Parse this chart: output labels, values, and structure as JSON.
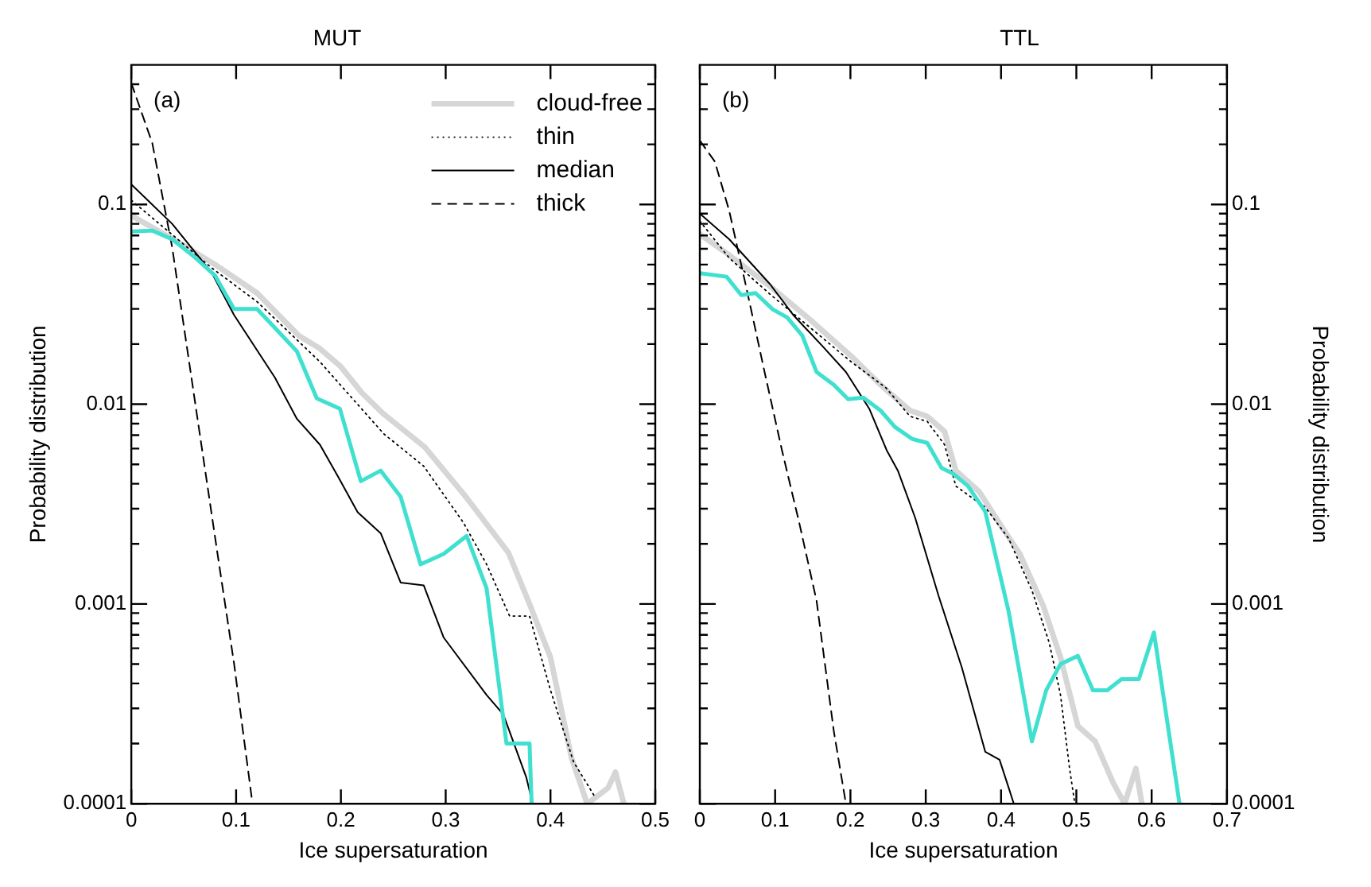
{
  "chart_data": [
    {
      "type": "line",
      "title": "MUT",
      "xlabel": "Ice supersaturation",
      "ylabel": "Probability distribution",
      "log": "y",
      "legend": "top right",
      "marker": "none",
      "grid": false,
      "annotations": [
        "(a)"
      ],
      "xlim": [
        0,
        0.5
      ],
      "xticks": [
        0,
        0.1,
        0.2,
        0.3,
        0.4,
        0.5
      ],
      "ylim": [
        0.0001,
        0.5
      ],
      "yticks": [
        0.0001,
        {
          "value": 0.0002,
          "label": null
        },
        {
          "value": 0.0003,
          "label": null
        },
        {
          "value": 0.0004,
          "label": null
        },
        {
          "value": 0.0005,
          "label": null
        },
        {
          "value": 0.0006,
          "label": null
        },
        {
          "value": 0.0007,
          "label": null
        },
        {
          "value": 0.0008,
          "label": null
        },
        {
          "value": 0.0009,
          "label": null
        },
        0.001,
        {
          "value": 0.002,
          "label": null
        },
        {
          "value": 0.003,
          "label": null
        },
        {
          "value": 0.004,
          "label": null
        },
        {
          "value": 0.005,
          "label": null
        },
        {
          "value": 0.006,
          "label": null
        },
        {
          "value": 0.007,
          "label": null
        },
        {
          "value": 0.008,
          "label": null
        },
        {
          "value": 0.009,
          "label": null
        },
        0.01,
        {
          "value": 0.02,
          "label": null
        },
        {
          "value": 0.03,
          "label": null
        },
        {
          "value": 0.04,
          "label": null
        },
        {
          "value": 0.05,
          "label": null
        },
        {
          "value": 0.06,
          "label": null
        },
        {
          "value": 0.07,
          "label": null
        },
        {
          "value": 0.08,
          "label": null
        },
        {
          "value": 0.09,
          "label": null
        },
        0.1,
        {
          "value": 0.2,
          "label": null
        },
        {
          "value": 0.3,
          "label": null
        },
        {
          "value": 0.4,
          "label": null
        }
      ],
      "series": [
        {
          "name": "cloud-free",
          "color": "#d6d6d6",
          "line_style": "solid",
          "x": [
            0,
            0.04,
            0.08,
            0.12,
            0.16,
            0.18,
            0.2,
            0.22,
            0.24,
            0.28,
            0.32,
            0.36,
            0.38,
            0.4,
            0.42,
            0.435,
            0.455,
            0.462,
            0.47
          ],
          "values": [
            0.088,
            0.067,
            0.05,
            0.036,
            0.022,
            0.019,
            0.0154,
            0.0114,
            0.009,
            0.0061,
            0.0034,
            0.0018,
            0.001,
            0.00054,
            0.00017,
            0.0001,
            0.00012,
            0.000144,
            0.0001
          ]
        },
        {
          "name": "thin",
          "color": "#000000",
          "line_style": "dotted",
          "x": [
            0,
            0.077,
            0.12,
            0.18,
            0.241,
            0.279,
            0.317,
            0.339,
            0.361,
            0.38,
            0.4,
            0.422,
            0.443
          ],
          "values": [
            0.105,
            0.048,
            0.0326,
            0.0163,
            0.0071,
            0.0049,
            0.00255,
            0.00158,
            0.00087,
            0.00087,
            0.00037,
            0.000162,
            0.000107
          ]
        },
        {
          "name": "median",
          "color": "#000000",
          "line_style": "solid",
          "x": [
            0,
            0.039,
            0.077,
            0.098,
            0.137,
            0.158,
            0.18,
            0.197,
            0.216,
            0.238,
            0.257,
            0.279,
            0.298,
            0.339,
            0.355,
            0.377,
            0.383
          ],
          "values": [
            0.126,
            0.08,
            0.0453,
            0.028,
            0.0136,
            0.00845,
            0.00627,
            0.00437,
            0.00288,
            0.00226,
            0.00128,
            0.00124,
            0.00068,
            0.00035,
            0.00028,
            0.000135,
            0.0001
          ]
        },
        {
          "name": "thick",
          "color": "#000000",
          "line_style": "dashed",
          "x": [
            0,
            0.02,
            0.039,
            0.061,
            0.083,
            0.098,
            0.115
          ],
          "values": [
            0.405,
            0.203,
            0.061,
            0.0101,
            0.00168,
            0.000505,
            0.000106
          ]
        },
        {
          "color": "#40e0d0",
          "line_style": "solid",
          "x": [
            0,
            0.02,
            0.039,
            0.061,
            0.08,
            0.098,
            0.12,
            0.137,
            0.158,
            0.177,
            0.199,
            0.219,
            0.238,
            0.257,
            0.276,
            0.298,
            0.32,
            0.339,
            0.358,
            0.38,
            0.382
          ],
          "values": [
            0.0733,
            0.074,
            0.067,
            0.0542,
            0.044,
            0.03,
            0.03,
            0.0241,
            0.0184,
            0.0107,
            0.0095,
            0.00412,
            0.00465,
            0.00344,
            0.00158,
            0.00178,
            0.00219,
            0.0012,
            0.0002,
            0.0002,
            0.0001
          ]
        }
      ]
    },
    {
      "type": "line",
      "title": "TTL",
      "xlabel": "Ice supersaturation",
      "y2label": "Probability distribution",
      "log": "y2",
      "marker": "none",
      "grid": false,
      "annotations": [
        "(b)"
      ],
      "xlim": [
        0,
        0.7
      ],
      "xticks": [
        0,
        0.1,
        0.2,
        0.3,
        0.4,
        0.5,
        0.6,
        0.7
      ],
      "y2lim": [
        0.0001,
        0.5
      ],
      "y2ticks": [
        0.0001,
        {
          "value": 0.0002,
          "label": null
        },
        {
          "value": 0.0003,
          "label": null
        },
        {
          "value": 0.0004,
          "label": null
        },
        {
          "value": 0.0005,
          "label": null
        },
        {
          "value": 0.0006,
          "label": null
        },
        {
          "value": 0.0007,
          "label": null
        },
        {
          "value": 0.0008,
          "label": null
        },
        {
          "value": 0.0009,
          "label": null
        },
        0.001,
        {
          "value": 0.002,
          "label": null
        },
        {
          "value": 0.003,
          "label": null
        },
        {
          "value": 0.004,
          "label": null
        },
        {
          "value": 0.005,
          "label": null
        },
        {
          "value": 0.006,
          "label": null
        },
        {
          "value": 0.007,
          "label": null
        },
        {
          "value": 0.008,
          "label": null
        },
        {
          "value": 0.009,
          "label": null
        },
        0.01,
        {
          "value": 0.02,
          "label": null
        },
        {
          "value": 0.03,
          "label": null
        },
        {
          "value": 0.04,
          "label": null
        },
        {
          "value": 0.05,
          "label": null
        },
        {
          "value": 0.06,
          "label": null
        },
        {
          "value": 0.07,
          "label": null
        },
        {
          "value": 0.08,
          "label": null
        },
        {
          "value": 0.09,
          "label": null
        },
        0.1,
        {
          "value": 0.2,
          "label": null
        },
        {
          "value": 0.3,
          "label": null
        },
        {
          "value": 0.4,
          "label": null
        }
      ],
      "series": [
        {
          "color": "#d6d6d6",
          "line_style": "solid",
          "axis": "y2",
          "x": [
            0,
            0.039,
            0.093,
            0.147,
            0.201,
            0.24,
            0.279,
            0.302,
            0.325,
            0.34,
            0.371,
            0.402,
            0.425,
            0.456,
            0.479,
            0.502,
            0.525,
            0.549,
            0.564,
            0.579,
            0.587
          ],
          "values": [
            0.071,
            0.0558,
            0.039,
            0.0264,
            0.0174,
            0.0125,
            0.0093,
            0.0087,
            0.0073,
            0.00465,
            0.00365,
            0.0024,
            0.00178,
            0.00098,
            0.00054,
            0.000245,
            0.000205,
            0.000127,
            0.0001,
            0.00015,
            0.0001
          ]
        },
        {
          "color": "#000000",
          "line_style": "dotted",
          "axis": "y2",
          "x": [
            0,
            0.039,
            0.093,
            0.147,
            0.201,
            0.247,
            0.279,
            0.302,
            0.325,
            0.34,
            0.379,
            0.41,
            0.441,
            0.464,
            0.479,
            0.491,
            0.498
          ],
          "values": [
            0.0826,
            0.054,
            0.0356,
            0.0241,
            0.0163,
            0.0121,
            0.0087,
            0.0082,
            0.00627,
            0.00389,
            0.00305,
            0.00213,
            0.00117,
            0.00064,
            0.00035,
            0.00015,
            0.0001
          ]
        },
        {
          "color": "#000000",
          "line_style": "solid",
          "axis": "y2",
          "x": [
            0,
            0.039,
            0.093,
            0.124,
            0.163,
            0.194,
            0.225,
            0.248,
            0.263,
            0.286,
            0.317,
            0.348,
            0.379,
            0.398,
            0.417
          ],
          "values": [
            0.09,
            0.067,
            0.04,
            0.028,
            0.0195,
            0.0145,
            0.0095,
            0.0059,
            0.00465,
            0.0027,
            0.0011,
            0.00048,
            0.000182,
            0.000166,
            0.0001
          ]
        },
        {
          "color": "#000000",
          "line_style": "dashed",
          "axis": "y2",
          "x": [
            0,
            0.02,
            0.039,
            0.062,
            0.086,
            0.109,
            0.132,
            0.155,
            0.178,
            0.194
          ],
          "values": [
            0.209,
            0.164,
            0.093,
            0.038,
            0.0145,
            0.0059,
            0.00255,
            0.00104,
            0.00023,
            0.0001
          ]
        },
        {
          "color": "#40e0d0",
          "line_style": "solid",
          "axis": "y2",
          "x": [
            0,
            0.0355,
            0.055,
            0.074,
            0.097,
            0.116,
            0.136,
            0.155,
            0.178,
            0.197,
            0.217,
            0.24,
            0.259,
            0.282,
            0.302,
            0.321,
            0.336,
            0.356,
            0.379,
            0.41,
            0.441,
            0.46,
            0.479,
            0.502,
            0.522,
            0.541,
            0.56,
            0.583,
            0.603,
            0.637
          ],
          "values": [
            0.0453,
            0.0435,
            0.0352,
            0.036,
            0.0298,
            0.0272,
            0.0221,
            0.0145,
            0.0125,
            0.0106,
            0.0108,
            0.0093,
            0.0077,
            0.0067,
            0.0064,
            0.0048,
            0.0045,
            0.0039,
            0.0029,
            0.00092,
            0.000205,
            0.00037,
            0.0005,
            0.00055,
            0.00037,
            0.00037,
            0.00042,
            0.00042,
            0.00072,
            0.0001
          ]
        }
      ]
    }
  ]
}
